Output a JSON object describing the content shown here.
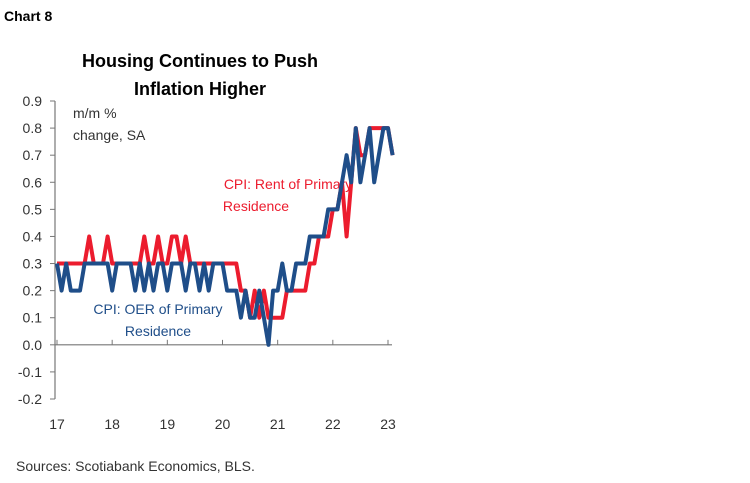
{
  "label": "Chart 8",
  "source": "Sources: Scotiabank Economics, BLS.",
  "chart_data": {
    "type": "line",
    "title": [
      "Housing Continues to Push",
      "Inflation Higher"
    ],
    "ylabel": [
      "m/m %",
      "change, SA"
    ],
    "xlabel": "",
    "ylim": [
      -0.2,
      0.9
    ],
    "yticks": [
      "0.9",
      "0.8",
      "0.7",
      "0.6",
      "0.5",
      "0.4",
      "0.3",
      "0.2",
      "0.1",
      "0.0",
      "-0.1",
      "-0.2"
    ],
    "xticks": [
      "17",
      "18",
      "19",
      "20",
      "21",
      "22",
      "23"
    ],
    "x_start": "2017-01",
    "frequency": "monthly",
    "grid": false,
    "series": [
      {
        "name": [
          "CPI: Rent of Primary",
          "Residence"
        ],
        "color": "#EC1C2E",
        "values": [
          0.3,
          0.3,
          0.3,
          0.3,
          0.3,
          0.3,
          0.3,
          0.4,
          0.3,
          0.3,
          0.3,
          0.4,
          0.3,
          0.3,
          0.3,
          0.3,
          0.3,
          0.3,
          0.3,
          0.4,
          0.3,
          0.3,
          0.4,
          0.3,
          0.3,
          0.4,
          0.4,
          0.3,
          0.4,
          0.3,
          0.3,
          0.3,
          0.3,
          0.3,
          0.3,
          0.3,
          0.3,
          0.3,
          0.3,
          0.3,
          0.2,
          0.2,
          0.1,
          0.2,
          0.1,
          0.2,
          0.1,
          0.1,
          0.1,
          0.1,
          0.2,
          0.2,
          0.2,
          0.2,
          0.2,
          0.3,
          0.3,
          0.4,
          0.4,
          0.4,
          0.5,
          0.5,
          0.6,
          0.4,
          0.6,
          0.8,
          0.7,
          0.7,
          0.8,
          0.8,
          0.8,
          0.8,
          0.8,
          0.7
        ]
      },
      {
        "name": [
          "CPI: OER of Primary",
          "Residence"
        ],
        "color": "#1F4E89",
        "values": [
          0.3,
          0.2,
          0.3,
          0.2,
          0.2,
          0.2,
          0.3,
          0.3,
          0.3,
          0.3,
          0.3,
          0.3,
          0.2,
          0.3,
          0.3,
          0.3,
          0.3,
          0.2,
          0.3,
          0.2,
          0.3,
          0.2,
          0.3,
          0.3,
          0.2,
          0.3,
          0.3,
          0.3,
          0.2,
          0.3,
          0.3,
          0.2,
          0.3,
          0.2,
          0.3,
          0.3,
          0.3,
          0.2,
          0.2,
          0.2,
          0.1,
          0.2,
          0.1,
          0.1,
          0.2,
          0.1,
          0.0,
          0.2,
          0.2,
          0.3,
          0.2,
          0.2,
          0.3,
          0.3,
          0.3,
          0.4,
          0.4,
          0.4,
          0.4,
          0.5,
          0.5,
          0.5,
          0.6,
          0.7,
          0.6,
          0.8,
          0.6,
          0.7,
          0.8,
          0.6,
          0.7,
          0.8,
          0.8,
          0.7
        ]
      }
    ]
  }
}
